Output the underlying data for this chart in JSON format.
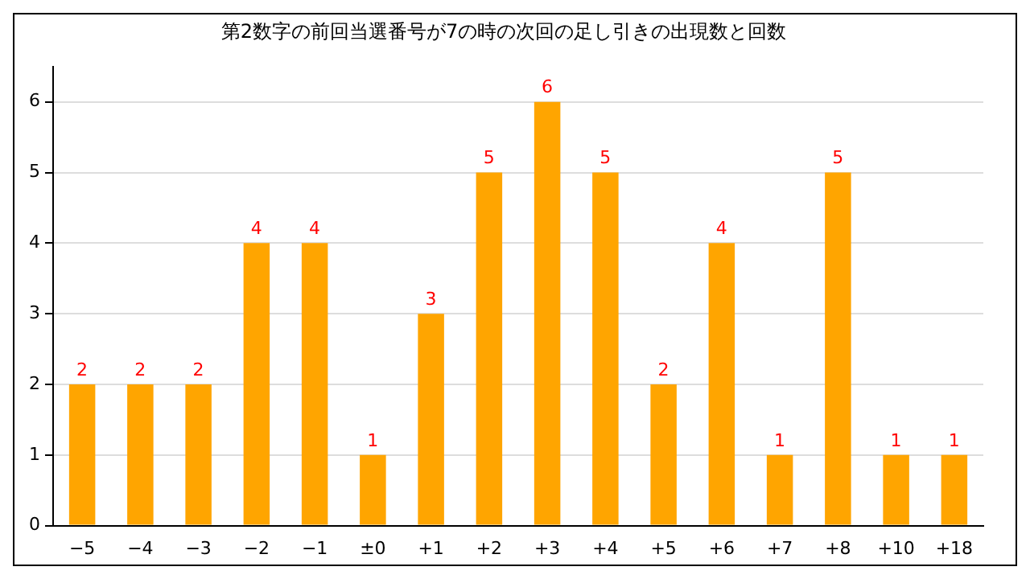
{
  "chart_data": {
    "type": "bar",
    "title": "第2数字の前回当選番号が7の時の次回の足し引きの出現数と回数",
    "categories": [
      "−5",
      "−4",
      "−3",
      "−2",
      "−1",
      "±0",
      "+1",
      "+2",
      "+3",
      "+4",
      "+5",
      "+6",
      "+7",
      "+8",
      "+10",
      "+18"
    ],
    "values": [
      2,
      2,
      2,
      4,
      4,
      1,
      3,
      5,
      6,
      5,
      2,
      4,
      1,
      5,
      1,
      1
    ],
    "color": "#ffa500",
    "data_labels": true,
    "ylim": [
      0,
      6.5
    ],
    "yticks": [
      0,
      1,
      2,
      3,
      4,
      5,
      6
    ],
    "grid": "y",
    "legend": false
  }
}
